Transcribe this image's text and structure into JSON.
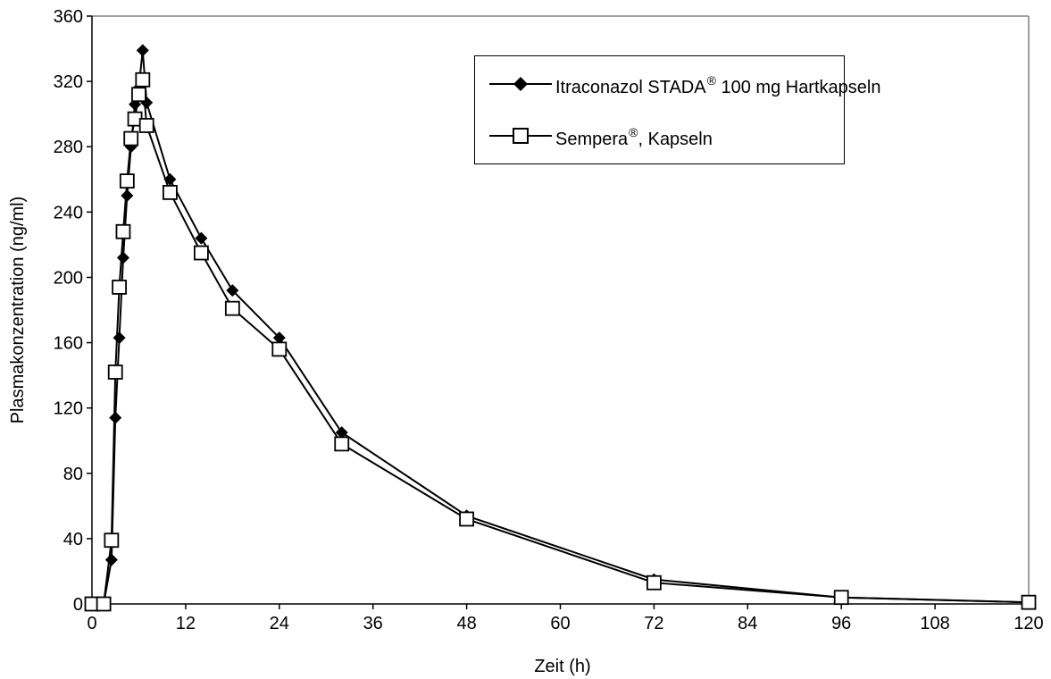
{
  "chart_data": {
    "type": "line",
    "xlabel": "Zeit (h)",
    "ylabel": "Plasmakonzentration (ng/ml)",
    "xlim": [
      0,
      120
    ],
    "ylim": [
      0,
      360
    ],
    "x_ticks": [
      "0",
      "12",
      "24",
      "36",
      "48",
      "60",
      "72",
      "84",
      "96",
      "108",
      "120"
    ],
    "y_ticks": [
      "0",
      "40",
      "80",
      "120",
      "160",
      "200",
      "240",
      "280",
      "320",
      "360"
    ],
    "grid": false,
    "legend_position": "top-right",
    "series": [
      {
        "name": "Itraconazol STADA",
        "name_sup": "®",
        "name_suffix": " 100 mg Hartkapseln",
        "marker": "diamond-filled",
        "color": "#000000",
        "x": [
          0,
          1.5,
          2.5,
          3,
          3.5,
          4,
          4.5,
          5,
          5.5,
          6,
          6.5,
          7,
          10,
          14,
          18,
          24,
          32,
          48,
          72,
          96,
          120
        ],
        "y": [
          0,
          0,
          27,
          114,
          163,
          212,
          250,
          280,
          306,
          316,
          339,
          307,
          260,
          224,
          192,
          163,
          105,
          54,
          15,
          4,
          1
        ]
      },
      {
        "name": "Sempera",
        "name_sup": "®",
        "name_suffix": ", Kapseln",
        "marker": "square-open",
        "color": "#000000",
        "x": [
          0,
          1.5,
          2.5,
          3,
          3.5,
          4,
          4.5,
          5,
          5.5,
          6,
          6.5,
          7,
          10,
          14,
          18,
          24,
          32,
          48,
          72,
          96,
          120
        ],
        "y": [
          0,
          0,
          39,
          142,
          194,
          228,
          259,
          285,
          297,
          312,
          321,
          293,
          252,
          215,
          181,
          156,
          98,
          52,
          13,
          4,
          1
        ]
      }
    ]
  }
}
